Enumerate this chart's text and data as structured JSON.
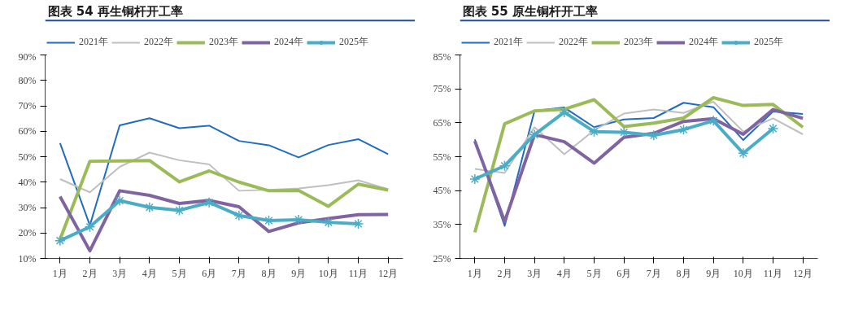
{
  "chart_data": [
    {
      "type": "line",
      "title": "图表 54    再生铜杆开工率",
      "categories": [
        "1月",
        "2月",
        "3月",
        "4月",
        "5月",
        "6月",
        "7月",
        "8月",
        "9月",
        "10月",
        "11月",
        "12月"
      ],
      "series": [
        {
          "name": "2021年",
          "color": "#1f6cc1",
          "values": [
            55.3,
            23,
            62.3,
            65.1,
            61.2,
            62.2,
            56.2,
            54.5,
            49.7,
            54.6,
            56.9,
            51.0
          ]
        },
        {
          "name": "2022年",
          "color": "#bfbfbf",
          "values": [
            41.2,
            36,
            46,
            51.6,
            48.6,
            47,
            36.6,
            37,
            37.5,
            38.8,
            40.7,
            37.2
          ]
        },
        {
          "name": "2023年",
          "color": "#9bbb59",
          "values": [
            17.5,
            48.2,
            48.3,
            48.5,
            40.1,
            44.4,
            40,
            36.6,
            36.7,
            30.5,
            39.2,
            36.9
          ]
        },
        {
          "name": "2024年",
          "color": "#8064a2",
          "values": [
            34.3,
            13,
            36.6,
            34.8,
            31.6,
            32.8,
            30.3,
            20.6,
            24,
            25.7,
            27.2,
            27.3
          ]
        },
        {
          "name": "2025年",
          "color": "#4bacc6",
          "marker": "cross",
          "values": [
            17,
            22.4,
            32.7,
            30.1,
            28.9,
            32.0,
            26.9,
            24.9,
            25.2,
            24.2,
            23.6,
            null
          ]
        }
      ],
      "ylim": [
        10,
        90
      ],
      "yticks": [
        {
          "value": 10,
          "label": "10%"
        },
        {
          "value": 20,
          "label": "20%"
        },
        {
          "value": 30,
          "label": "30%"
        },
        {
          "value": 40,
          "label": "40%"
        },
        {
          "value": 50,
          "label": "50%"
        },
        {
          "value": 60,
          "label": "60%"
        },
        {
          "value": 70,
          "label": "70%"
        },
        {
          "value": 80,
          "label": "80%"
        },
        {
          "value": 90,
          "label": "90%"
        }
      ],
      "grid": false,
      "legend": "top"
    },
    {
      "type": "line",
      "title": "图表 55    原生铜杆开工率",
      "categories": [
        "1月",
        "2月",
        "3月",
        "4月",
        "5月",
        "6月",
        "7月",
        "8月",
        "9月",
        "10月",
        "11月",
        "12月"
      ],
      "series": [
        {
          "name": "2021年",
          "color": "#1f6cc1",
          "values": [
            60.1,
            34.6,
            68.5,
            69.5,
            63.7,
            66,
            66.4,
            70.9,
            69.6,
            59.9,
            68.3,
            67.6
          ]
        },
        {
          "name": "2022年",
          "color": "#bfbfbf",
          "values": [
            51.4,
            50.2,
            63.7,
            55.7,
            62.8,
            67.7,
            68.9,
            67.9,
            71.2,
            62.4,
            66.3,
            61.6
          ]
        },
        {
          "name": "2023年",
          "color": "#9bbb59",
          "values": [
            32.7,
            64.7,
            68.5,
            69,
            71.8,
            63.9,
            64.9,
            66.4,
            72.4,
            70.1,
            70.4,
            63.7
          ]
        },
        {
          "name": "2024年",
          "color": "#8064a2",
          "values": [
            59.6,
            35.9,
            61.5,
            59.4,
            53.1,
            60.7,
            61.9,
            65.4,
            66.2,
            61.6,
            68.9,
            66.3
          ]
        },
        {
          "name": "2025年",
          "color": "#4bacc6",
          "marker": "cross",
          "values": [
            48.4,
            52.3,
            61.5,
            68.1,
            62.4,
            62.2,
            61.3,
            63,
            65.6,
            56.0,
            63.3,
            null
          ]
        }
      ],
      "ylim": [
        25,
        85
      ],
      "yticks": [
        {
          "value": 25,
          "label": "25%"
        },
        {
          "value": 35,
          "label": "35%"
        },
        {
          "value": 45,
          "label": "45%"
        },
        {
          "value": 55,
          "label": "55%"
        },
        {
          "value": 65,
          "label": "65%"
        },
        {
          "value": 75,
          "label": "75%"
        },
        {
          "value": 85,
          "label": "85%"
        }
      ],
      "grid": false,
      "legend": "top"
    }
  ]
}
